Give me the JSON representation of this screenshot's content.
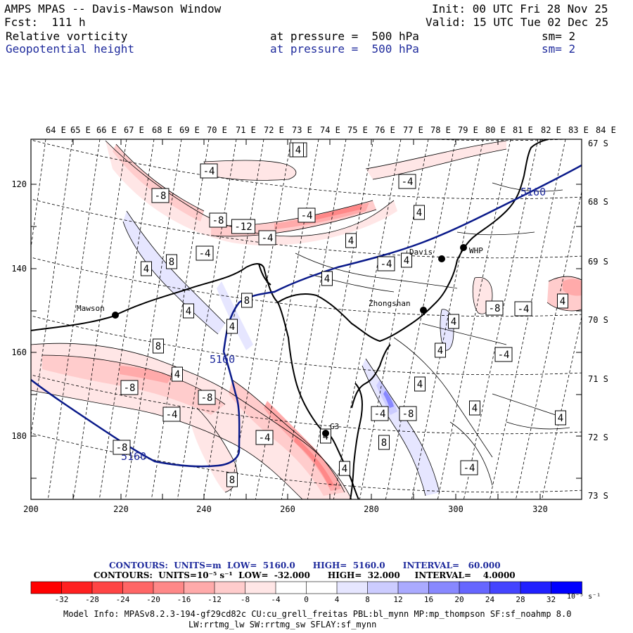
{
  "header": {
    "title": "AMPS MPAS -- Davis-Mawson Window",
    "init": "Init: 00 UTC Fri 28 Nov 25",
    "fcst": "Fcst:  111 h",
    "valid": "Valid: 15 UTC Tue 02 Dec 25",
    "field1": {
      "name": "Relative vorticity",
      "level": "at pressure =  500 hPa",
      "smooth": "sm= 2"
    },
    "field2": {
      "name": "Geopotential height",
      "level": "at pressure =  500 hPa",
      "smooth": "sm= 2"
    }
  },
  "map": {
    "lon_labels": [
      "64 E",
      "65 E",
      "66 E",
      "67 E",
      "68 E",
      "69 E",
      "70 E",
      "71 E",
      "72 E",
      "73 E",
      "74 E",
      "75 E",
      "76 E",
      "77 E",
      "78 E",
      "79 E",
      "80 E",
      "81 E",
      "82 E",
      "83 E",
      "84 E"
    ],
    "lat_labels": [
      "67 S",
      "68 S",
      "69 S",
      "70 S",
      "71 S",
      "72 S",
      "73 S"
    ],
    "y_ticks": [
      "120",
      "140",
      "160",
      "180"
    ],
    "x_ticks": [
      "200",
      "220",
      "240",
      "260",
      "280",
      "300",
      "320"
    ],
    "stations": [
      {
        "name": "Mawson"
      },
      {
        "name": "Davis"
      },
      {
        "name": "WHP"
      },
      {
        "name": "Zhongshan"
      },
      {
        "name": "G3"
      }
    ],
    "height_labels": [
      "5160",
      "5160",
      "5160"
    ],
    "vort_labels": [
      "-4",
      "-4",
      "-8",
      "-4",
      "-8",
      "-12",
      "-4",
      "-4",
      "-4",
      "4",
      "4",
      "8",
      "-4",
      "4",
      "4",
      "4",
      "4",
      "8",
      "4",
      "4",
      "-8",
      "-4",
      "4",
      "8",
      "4",
      "-4",
      "4",
      "-8",
      "4",
      "-4",
      "-8",
      "-4",
      "-4",
      "-8",
      "4",
      "8",
      "4",
      "4",
      "4",
      "8",
      "-4",
      "-8",
      "4"
    ]
  },
  "legend": {
    "contours1": "CONTOURS:  UNITS=m  LOW=  5160.0      HIGH=  5160.0      INTERVAL=   60.000",
    "contours2": "CONTOURS:  UNITS=10⁻⁵ s⁻¹  LOW=  -32.000      HIGH=  32.000     INTERVAL=    4.0000",
    "colorbar_ticks": [
      "-32",
      "-28",
      "-24",
      "-20",
      "-16",
      "-12",
      "-8",
      "-4",
      "0",
      "4",
      "8",
      "12",
      "16",
      "20",
      "24",
      "28",
      "32"
    ],
    "colorbar_units": "10⁻⁵ s⁻¹",
    "colors": [
      "#ff0000",
      "#ff2020",
      "#ff4444",
      "#ff6666",
      "#ff8888",
      "#ffaaaa",
      "#ffcccc",
      "#ffe6e6",
      "#ffffff",
      "#ffffff",
      "#e6e6ff",
      "#ccccff",
      "#aaaaff",
      "#8888ff",
      "#6666ff",
      "#4444ff",
      "#2020ff",
      "#0000ff"
    ]
  },
  "model_info": {
    "line1": "Model Info: MPASv8.2.3-194-gf29cd82c CU:cu_grell_freitas PBL:bl_mynn MP:mp_thompson SF:sf_noahmp 8.0",
    "line2": "LW:rrtmg_lw SW:rrtmg_sw SFLAY:sf_mynn"
  }
}
